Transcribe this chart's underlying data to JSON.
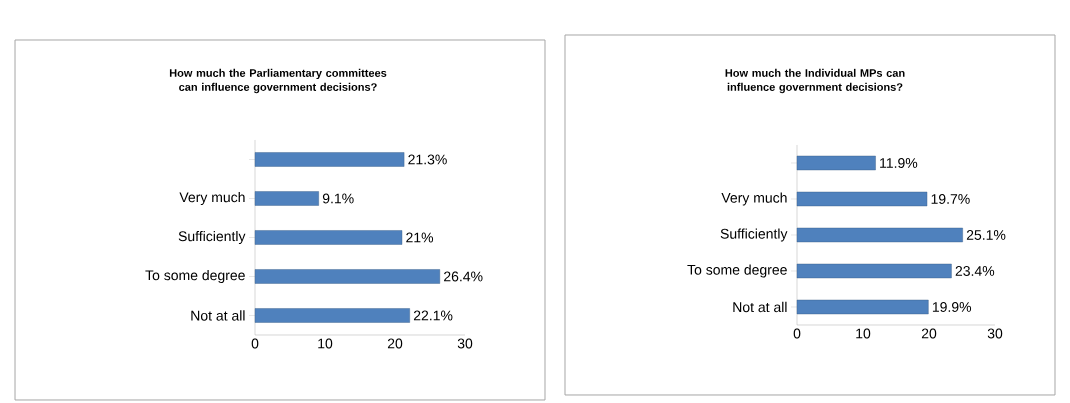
{
  "chart_data": [
    {
      "type": "bar",
      "orientation": "horizontal",
      "title": "How much the Parliamentary committees can influence government decisions?",
      "categories": [
        null,
        "Very much",
        "Sufficiently",
        "To some degree",
        "Not at all"
      ],
      "values": [
        21.3,
        9.1,
        21,
        26.4,
        22.1
      ],
      "value_labels": [
        "21.3%",
        "9.1%",
        "21%",
        "26.4%",
        "22.1%"
      ],
      "color": "#4f81bd",
      "xlim": [
        0,
        30
      ],
      "xticks": [
        0,
        10,
        20,
        30
      ],
      "grid": false
    },
    {
      "type": "bar",
      "orientation": "horizontal",
      "title": "How much the Individual MPs can influence government decisions?",
      "categories": [
        null,
        "Very much",
        "Sufficiently",
        "To some degree",
        "Not at all"
      ],
      "values": [
        11.9,
        19.7,
        25.1,
        23.4,
        19.9
      ],
      "value_labels": [
        "11.9%",
        "19.7%",
        "25.1%",
        "23.4%",
        "19.9%"
      ],
      "color": "#4f81bd",
      "xlim": [
        0,
        30
      ],
      "xticks": [
        0,
        10,
        20,
        30
      ],
      "grid": false
    }
  ]
}
